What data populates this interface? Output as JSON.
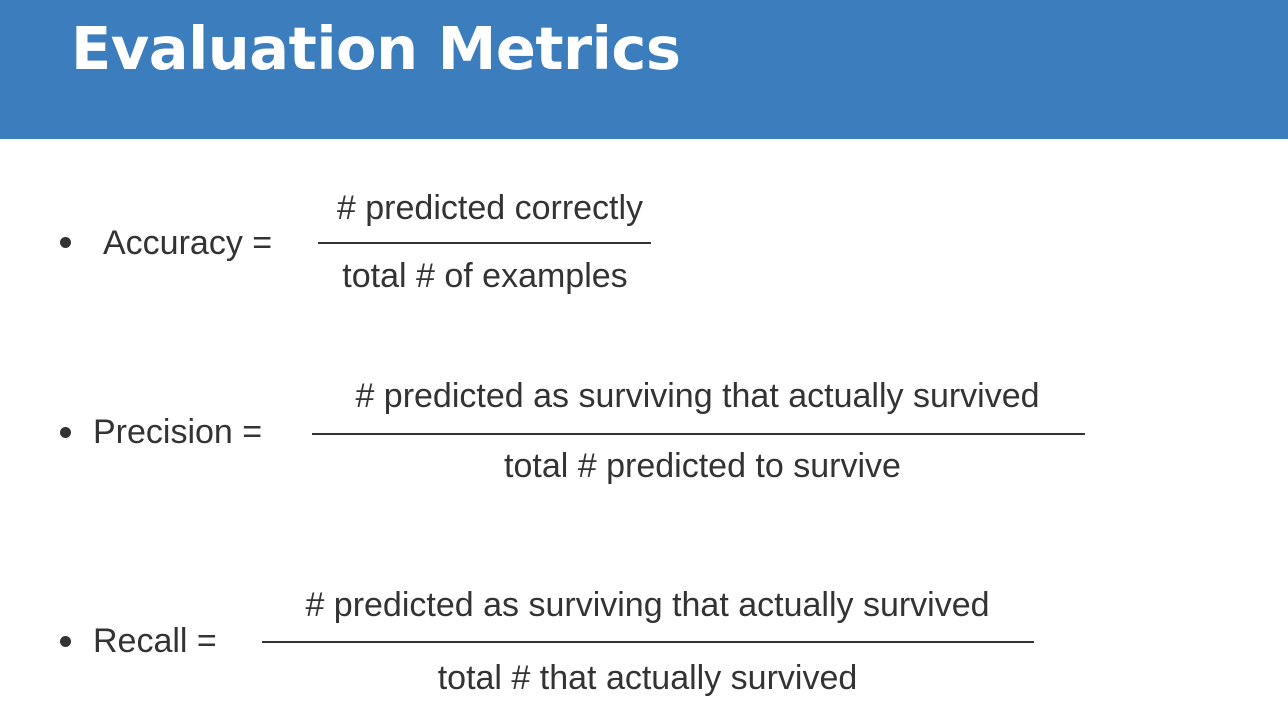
{
  "slide": {
    "title": "Evaluation Metrics",
    "colors": {
      "title_bar": "#3b7dbd",
      "title_text": "#ffffff",
      "body_text": "#333333",
      "background": "#ffffff"
    }
  },
  "metrics": [
    {
      "label": "Accuracy =",
      "numerator": "# predicted correctly",
      "denominator": "total # of examples"
    },
    {
      "label": "Precision =",
      "numerator": "# predicted as surviving that actually survived",
      "denominator": "total # predicted to survive"
    },
    {
      "label": "Recall =",
      "numerator": "# predicted as surviving that actually survived",
      "denominator": "total # that actually survived"
    }
  ]
}
